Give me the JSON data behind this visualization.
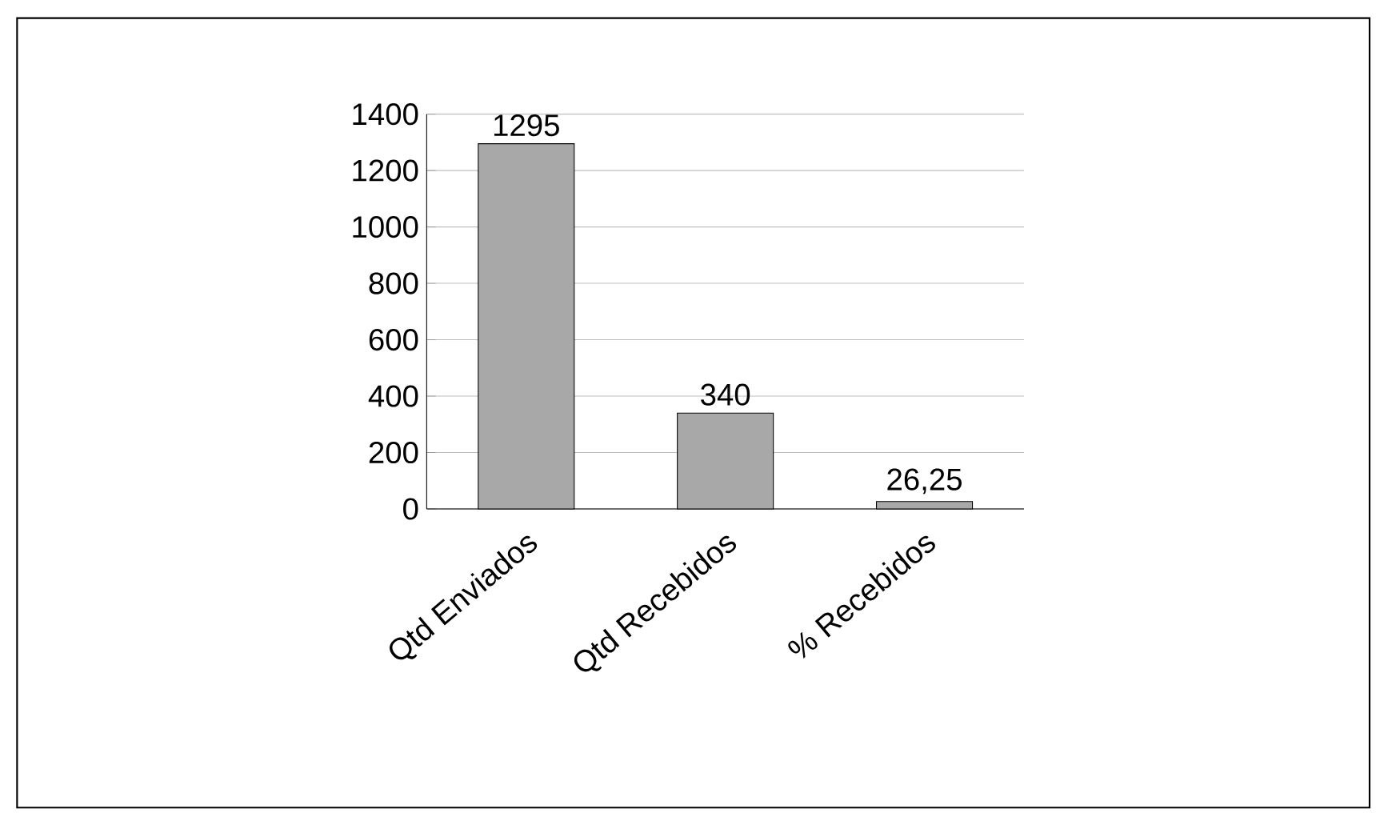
{
  "chart_data": {
    "type": "bar",
    "categories": [
      "Qtd Enviados",
      "Qtd Recebidos",
      "% Recebidos"
    ],
    "values": [
      1295,
      340,
      26.25
    ],
    "value_labels": [
      "1295",
      "340",
      "26,25"
    ],
    "color": "#a8a8a8",
    "ylim": [
      0,
      1400
    ],
    "yticks": [
      0,
      200,
      400,
      600,
      800,
      1000,
      1200,
      1400
    ],
    "grid": "y"
  }
}
